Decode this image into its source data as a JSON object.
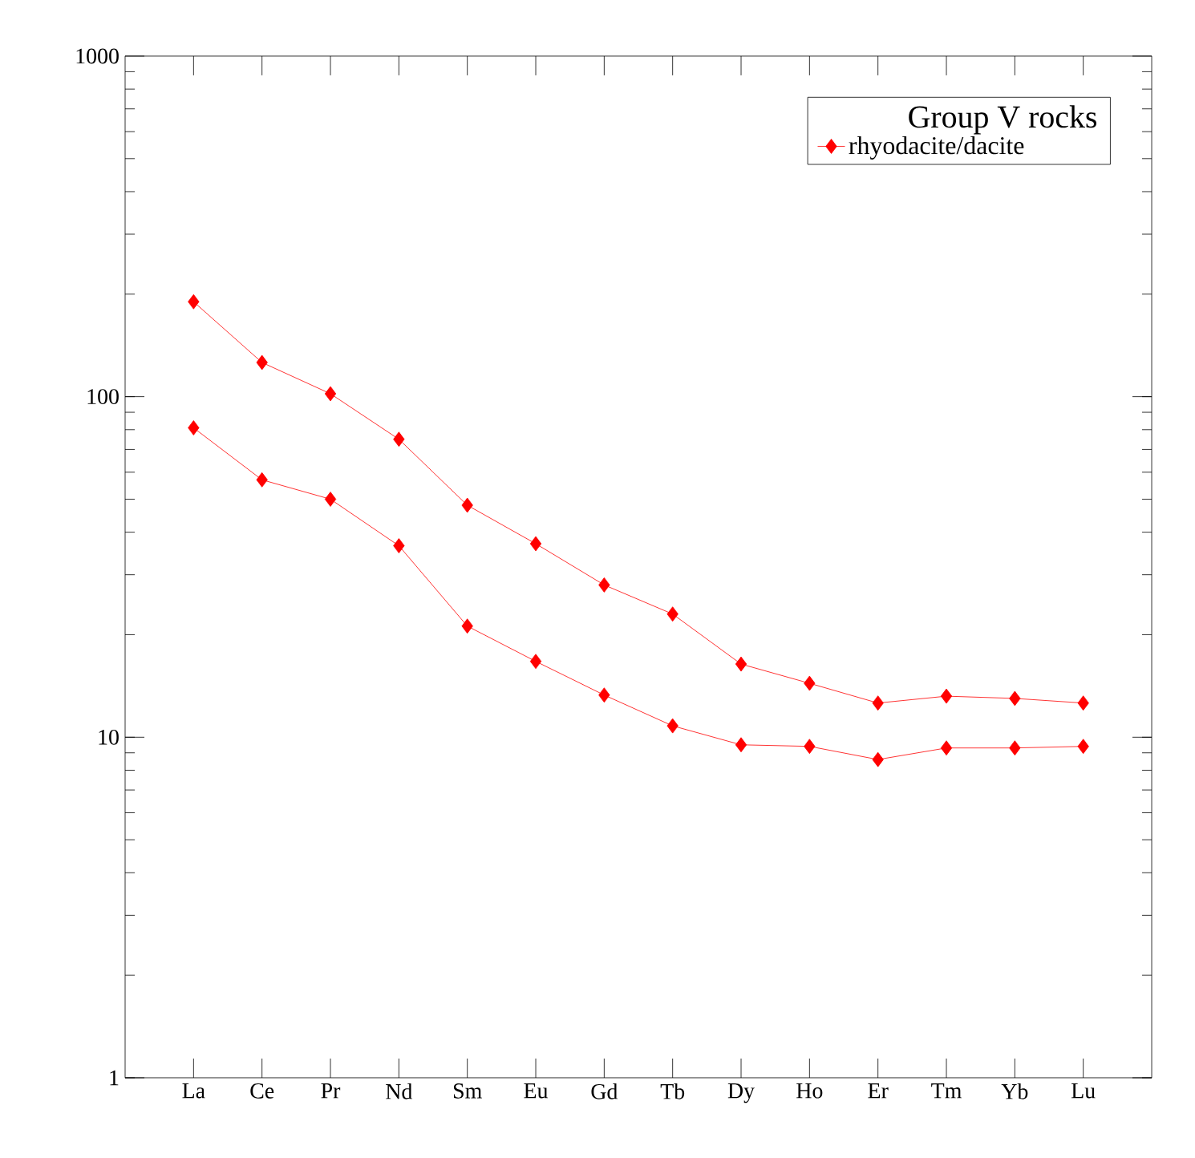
{
  "chart_data": {
    "type": "line",
    "legend_title": "Group V rocks",
    "categories": [
      "La",
      "Ce",
      "Pr",
      "Nd",
      "Sm",
      "Eu",
      "Gd",
      "Tb",
      "Dy",
      "Ho",
      "Er",
      "Tm",
      "Yb",
      "Lu"
    ],
    "series": [
      {
        "name": "rhyodacite/dacite",
        "color": "#ff0000",
        "values": [
          190,
          126,
          102,
          75,
          48,
          37,
          28,
          23,
          16.4,
          14.4,
          12.6,
          13.2,
          13,
          12.6
        ]
      },
      {
        "color": "#ff0000",
        "values": [
          81,
          57,
          50,
          36.5,
          21.2,
          16.7,
          13.3,
          10.8,
          9.5,
          9.4,
          8.6,
          9.3,
          9.3,
          9.4
        ]
      }
    ],
    "ylim": [
      1,
      1000
    ],
    "yticks": [
      1,
      10,
      100,
      1000
    ],
    "log": true,
    "grid": false,
    "legend": "top right",
    "marker": "diamond",
    "line_style": "solid"
  }
}
